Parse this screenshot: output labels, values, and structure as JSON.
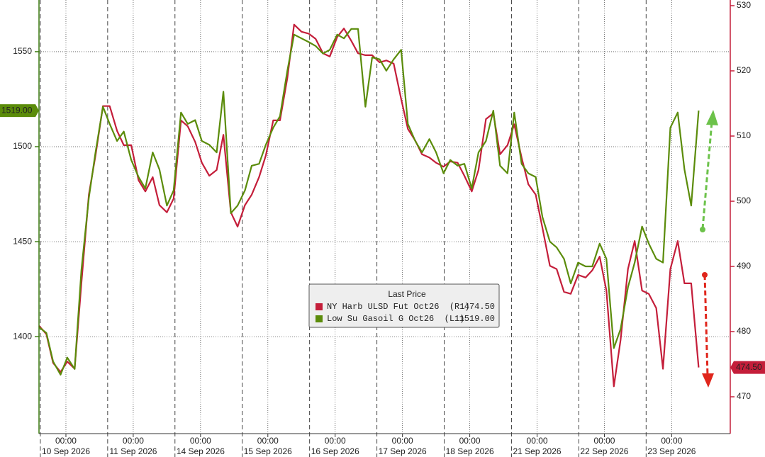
{
  "chart_data": {
    "type": "line",
    "x": [
      -0.4,
      -0.29,
      -0.19,
      -0.08,
      0.02,
      0.13,
      0.23,
      0.34,
      0.44,
      0.55,
      0.65,
      0.76,
      0.86,
      0.97,
      1.08,
      1.18,
      1.29,
      1.39,
      1.5,
      1.6,
      1.71,
      1.81,
      1.92,
      2.02,
      2.13,
      2.24,
      2.34,
      2.45,
      2.55,
      2.66,
      2.76,
      2.87,
      2.97,
      3.08,
      3.18,
      3.29,
      3.39,
      3.5,
      3.61,
      3.71,
      3.82,
      3.92,
      4.03,
      4.13,
      4.24,
      4.34,
      4.45,
      4.55,
      4.66,
      4.76,
      4.87,
      4.98,
      5.08,
      5.19,
      5.29,
      5.4,
      5.5,
      5.61,
      5.71,
      5.82,
      5.92,
      6.03,
      6.13,
      6.24,
      6.35,
      6.45,
      6.56,
      6.66,
      6.77,
      6.87,
      6.98,
      7.08,
      7.19,
      7.29,
      7.4,
      7.5,
      7.61,
      7.72,
      7.82,
      7.93,
      8.03,
      8.14,
      8.24,
      8.35,
      8.45,
      8.56,
      8.66,
      8.77,
      8.87,
      8.98,
      9.09,
      9.19,
      9.29,
      9.4
    ],
    "xlim": [
      -0.4,
      9.87
    ],
    "xticks": [
      {
        "value": 0,
        "label": "00:00"
      },
      {
        "value": 1,
        "label": "00:00"
      },
      {
        "value": 2,
        "label": "00:00"
      },
      {
        "value": 3,
        "label": "00:00"
      },
      {
        "value": 4,
        "label": "00:00"
      },
      {
        "value": 5,
        "label": "00:00"
      },
      {
        "value": 6,
        "label": "00:00"
      },
      {
        "value": 7,
        "label": "00:00"
      },
      {
        "value": 8,
        "label": "00:00"
      },
      {
        "value": 9,
        "label": "00:00"
      }
    ],
    "xtick_dates": [
      "10 Sep 2026",
      "11 Sep 2026",
      "14 Sep 2026",
      "15 Sep 2026",
      "16 Sep 2026",
      "17 Sep 2026",
      "18 Sep 2026",
      "21 Sep 2026",
      "22 Sep 2026",
      "23 Sep 2026"
    ],
    "ylim": [
      1349,
      1577.2
    ],
    "yticks": [
      1400,
      1450,
      1500,
      1550
    ],
    "y2lim": [
      464.35,
      530.87
    ],
    "y2ticks": [
      470,
      480,
      490,
      500,
      510,
      520,
      530
    ],
    "grid": true,
    "legend": "center",
    "legend_title": "Last Price",
    "series": [
      {
        "name": "NY Harb ULSD Fut Oct26  (R1)",
        "color": "#c41e3a",
        "axis": "y2",
        "last_label": "474.50",
        "values": [
          480.9,
          479.6,
          475.2,
          473.8,
          475.4,
          474.3,
          487.4,
          501.0,
          507.0,
          514.6,
          514.6,
          510.8,
          508.6,
          508.6,
          503.2,
          501.5,
          503.7,
          499.4,
          498.3,
          500.4,
          512.4,
          511.5,
          509.1,
          505.9,
          503.9,
          504.8,
          510.2,
          498.3,
          496.1,
          499.4,
          501.0,
          503.7,
          507.0,
          512.4,
          512.4,
          518.9,
          527.1,
          526.0,
          525.7,
          524.9,
          522.7,
          522.2,
          525.2,
          526.5,
          524.6,
          522.7,
          522.4,
          522.4,
          521.3,
          521.6,
          521.1,
          515.7,
          511.1,
          509.3,
          507.2,
          506.7,
          505.9,
          505.3,
          506.1,
          505.9,
          503.9,
          501.5,
          504.8,
          512.6,
          513.5,
          507.2,
          508.6,
          511.8,
          506.7,
          502.6,
          501.0,
          495.9,
          490.1,
          489.6,
          486.1,
          485.8,
          488.7,
          488.3,
          489.4,
          491.5,
          486.3,
          471.6,
          478.7,
          489.6,
          493.9,
          486.3,
          485.8,
          483.6,
          474.3,
          489.6,
          493.9,
          487.4,
          487.4,
          474.5
        ]
      },
      {
        "name": "Low Su Gasoil G Oct26  (L1)",
        "color": "#5b8c0a",
        "axis": "y",
        "last_label": "1519.00",
        "values": [
          1405,
          1402,
          1387,
          1380,
          1389,
          1383,
          1435,
          1473,
          1497,
          1521,
          1512,
          1503,
          1508,
          1493,
          1484,
          1478,
          1497,
          1488,
          1469,
          1477,
          1518,
          1512,
          1514,
          1503,
          1501,
          1497,
          1529,
          1465,
          1469,
          1477,
          1490,
          1491,
          1501,
          1510,
          1516,
          1540,
          1559,
          1557,
          1555,
          1553,
          1549,
          1551,
          1559,
          1557,
          1562,
          1562,
          1521,
          1547,
          1546,
          1540,
          1546,
          1551,
          1512,
          1503,
          1497,
          1504,
          1497,
          1486,
          1493,
          1490,
          1491,
          1478,
          1497,
          1503,
          1519,
          1490,
          1486,
          1518,
          1491,
          1486,
          1484,
          1463,
          1450,
          1447,
          1441,
          1428,
          1439,
          1437,
          1437,
          1449,
          1441,
          1394,
          1404,
          1426,
          1439,
          1458,
          1449,
          1441,
          1439,
          1510,
          1518,
          1488,
          1469,
          1519
        ]
      }
    ]
  }
}
